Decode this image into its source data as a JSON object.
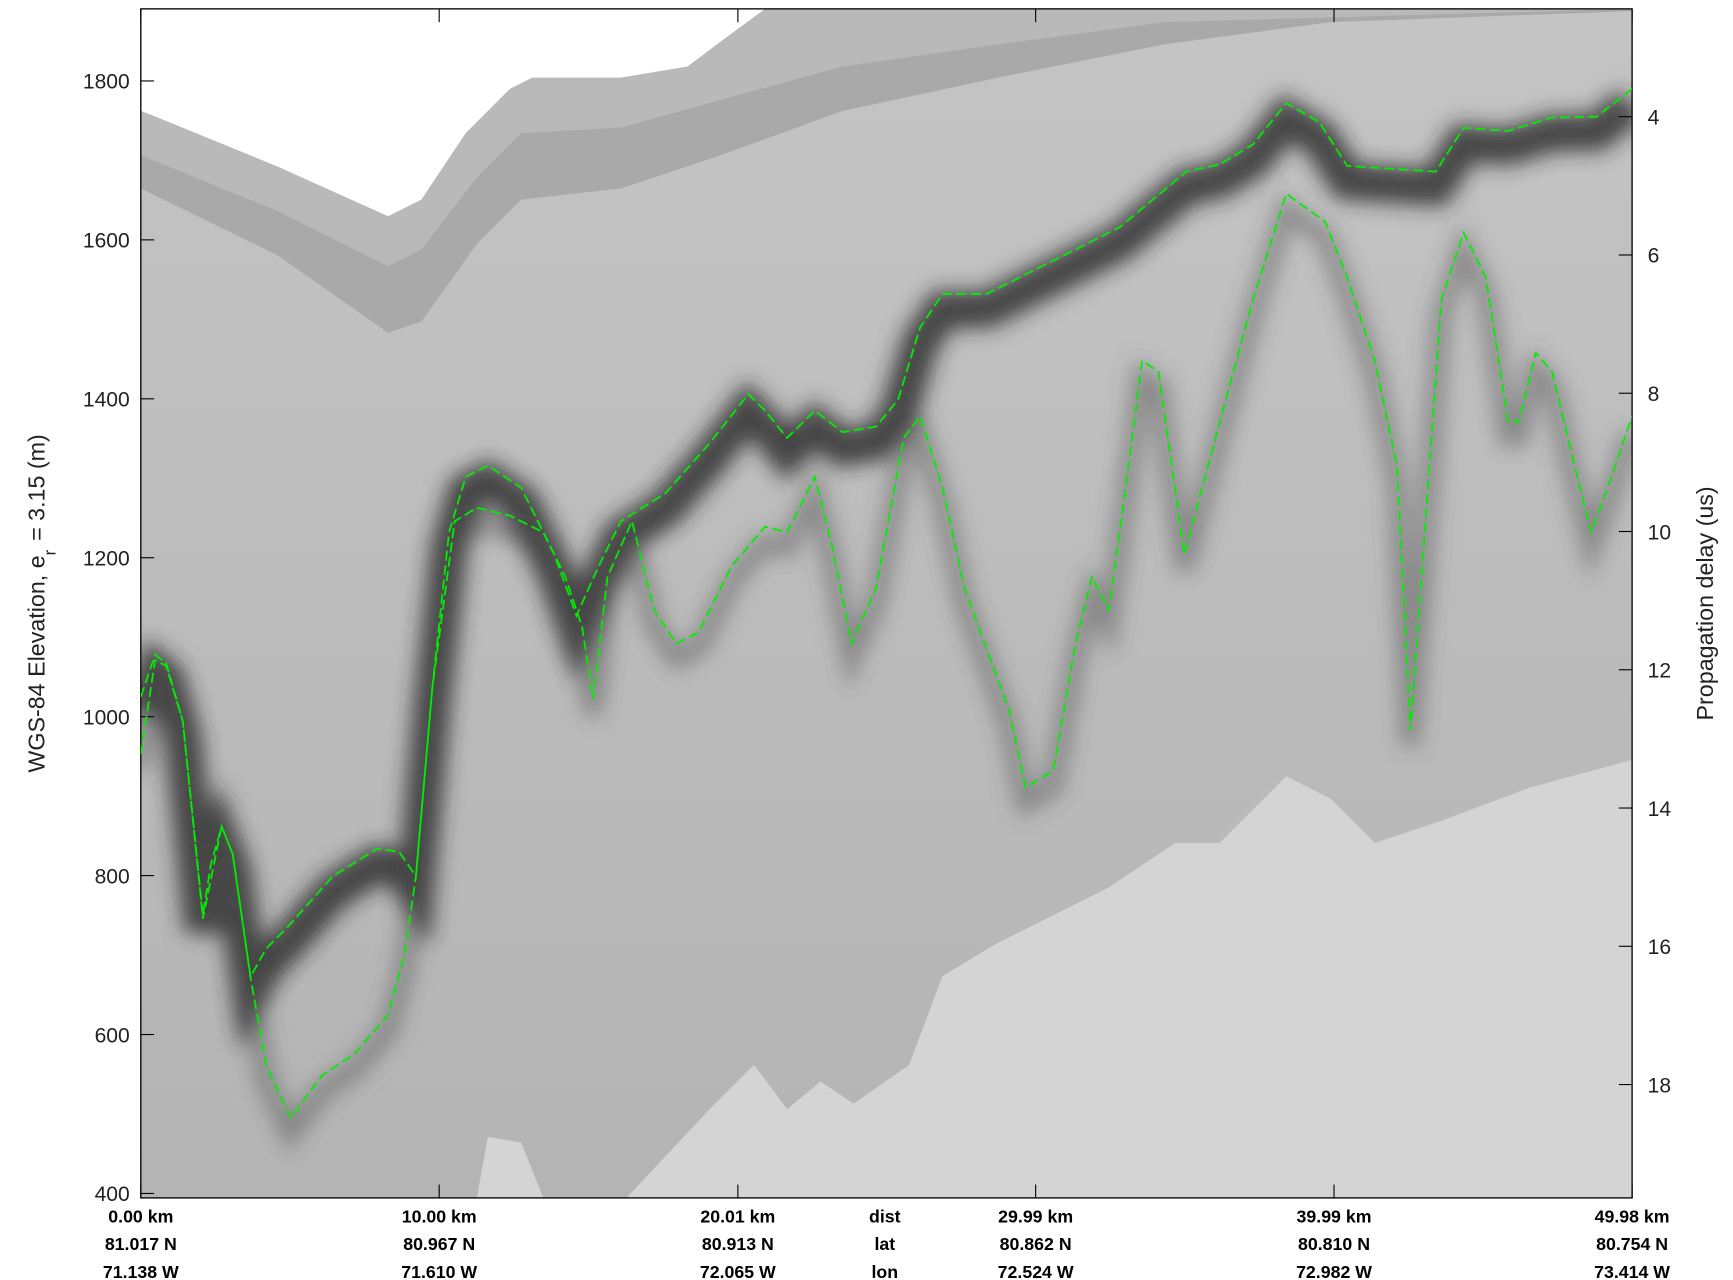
{
  "chart_data": {
    "type": "line",
    "y_label": {
      "main": "WGS-84 Elevation, e",
      "sub": "r",
      "rest": "= 3.15 (m)"
    },
    "y2_label": "Propagation delay (us)",
    "xlim": [
      0,
      49.98
    ],
    "xticks": [
      {
        "value": 0,
        "label": "0.00 km"
      },
      {
        "value": 10.0,
        "label": "10.00 km"
      },
      {
        "value": 20.01,
        "label": "20.01 km"
      },
      {
        "value": 29.99,
        "label": "29.99 km"
      },
      {
        "value": 39.99,
        "label": "39.99 km"
      },
      {
        "value": 49.98,
        "label": "49.98 km"
      }
    ],
    "lat_labels": [
      "81.017 N",
      "80.967 N",
      "80.913 N",
      "80.862 N",
      "80.810 N",
      "80.754 N"
    ],
    "lon_labels": [
      "71.138 W",
      "71.610 W",
      "72.065 W",
      "72.524 W",
      "72.982 W",
      "73.414 W"
    ],
    "row_labels": [
      "dist",
      "lat",
      "lon"
    ],
    "ylim": [
      394.4,
      1890.7
    ],
    "yticks": [
      400,
      600,
      800,
      1000,
      1200,
      1400,
      1600,
      1800
    ],
    "y2lim": [
      19.64,
      2.44
    ],
    "y2ticks": [
      4,
      6,
      8,
      10,
      12,
      14,
      16,
      18
    ],
    "series": [
      {
        "color": "#00ee00",
        "x": [
          0,
          0.48,
          0.85,
          1.41,
          2.08,
          2.34,
          2.71,
          3.08,
          3.68,
          4.2,
          4.94,
          6.43,
          7.92,
          8.66,
          9.22,
          9.77,
          10.33,
          10.89,
          11.63,
          12.75,
          13.86,
          14.6,
          15.35,
          16.09,
          17.58,
          19.06,
          20.36,
          20.92,
          21.66,
          22.59,
          23.52,
          24.64,
          25.38,
          26.12,
          26.87,
          28.35,
          29.84,
          31.33,
          32.81,
          33.93,
          35.04,
          36.16,
          37.27,
          38.39,
          39.5,
          40.43,
          41.73,
          43.4,
          44.33,
          45.82,
          47.3,
          48.79,
          49.98
        ],
        "values": [
          1025,
          1078,
          1067,
          994,
          750,
          813,
          862,
          827,
          673,
          708,
          736,
          799,
          834,
          830,
          799,
          1036,
          1232,
          1302,
          1316,
          1288,
          1204,
          1127,
          1190,
          1246,
          1281,
          1344,
          1406,
          1385,
          1351,
          1385,
          1358,
          1365,
          1399,
          1490,
          1532,
          1532,
          1560,
          1588,
          1616,
          1651,
          1686,
          1695,
          1720,
          1772,
          1748,
          1693,
          1690,
          1686,
          1741,
          1737,
          1754,
          1755,
          1790
        ]
      },
      {
        "color": "#00ee00",
        "x": [
          0,
          0.48,
          0.85,
          1.41,
          2.08,
          2.71,
          3.08,
          3.68,
          4.2,
          5.02,
          6.06,
          7.17,
          8.29,
          8.84,
          9.22,
          9.77,
          10.52,
          11.26,
          12.37,
          13.49,
          14.23,
          14.79,
          15.16,
          15.64,
          16.46,
          17.21,
          17.95,
          18.69,
          19.81,
          20.92,
          21.66,
          22.59,
          23.15,
          23.82,
          24.64,
          25.57,
          26.12,
          26.87,
          27.61,
          28.35,
          29.1,
          29.65,
          30.58,
          31.33,
          31.88,
          32.44,
          32.81,
          33.56,
          34.11,
          34.97,
          36.16,
          37.27,
          38.39,
          39.69,
          40.43,
          41.36,
          42.1,
          42.55,
          43.03,
          43.59,
          44.33,
          45.08,
          45.82,
          46.19,
          46.75,
          47.3,
          48.05,
          48.61,
          49.16,
          49.98
        ],
        "values": [
          953,
          1071,
          1064,
          994,
          746,
          862,
          827,
          671,
          562,
          495,
          548,
          576,
          625,
          701,
          799,
          1036,
          1246,
          1263,
          1253,
          1232,
          1176,
          1113,
          1022,
          1176,
          1246,
          1134,
          1092,
          1106,
          1190,
          1239,
          1232,
          1302,
          1218,
          1092,
          1162,
          1351,
          1378,
          1288,
          1162,
          1085,
          1009,
          911,
          932,
          1092,
          1176,
          1134,
          1232,
          1448,
          1434,
          1204,
          1371,
          1525,
          1658,
          1623,
          1553,
          1448,
          1316,
          983,
          1232,
          1525,
          1609,
          1553,
          1371,
          1371,
          1458,
          1434,
          1316,
          1232,
          1288,
          1378
        ]
      }
    ]
  }
}
